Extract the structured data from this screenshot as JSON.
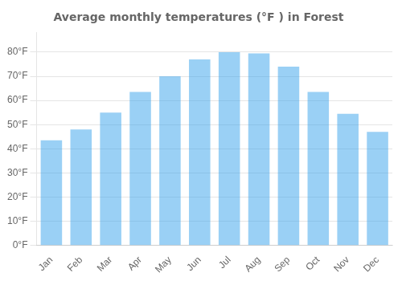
{
  "chart_data": {
    "type": "bar",
    "title": "Average monthly temperatures (°F ) in Forest",
    "categories": [
      "Jan",
      "Feb",
      "Mar",
      "Apr",
      "May",
      "Jun",
      "Jul",
      "Aug",
      "Sep",
      "Oct",
      "Nov",
      "Dec"
    ],
    "values": [
      43.5,
      48.0,
      55.0,
      63.5,
      70.0,
      77.0,
      80.0,
      79.5,
      74.0,
      63.5,
      54.5,
      47.0
    ],
    "ylim": [
      0,
      88
    ],
    "yticks": [
      {
        "value": 0,
        "label": "0°F"
      },
      {
        "value": 10,
        "label": "10°F"
      },
      {
        "value": 20,
        "label": "20°F"
      },
      {
        "value": 30,
        "label": "30°F"
      },
      {
        "value": 40,
        "label": "40°F"
      },
      {
        "value": 50,
        "label": "50°F"
      },
      {
        "value": 60,
        "label": "60°F"
      },
      {
        "value": 70,
        "label": "70°F"
      },
      {
        "value": 80,
        "label": "80°F"
      }
    ],
    "grid": true
  }
}
